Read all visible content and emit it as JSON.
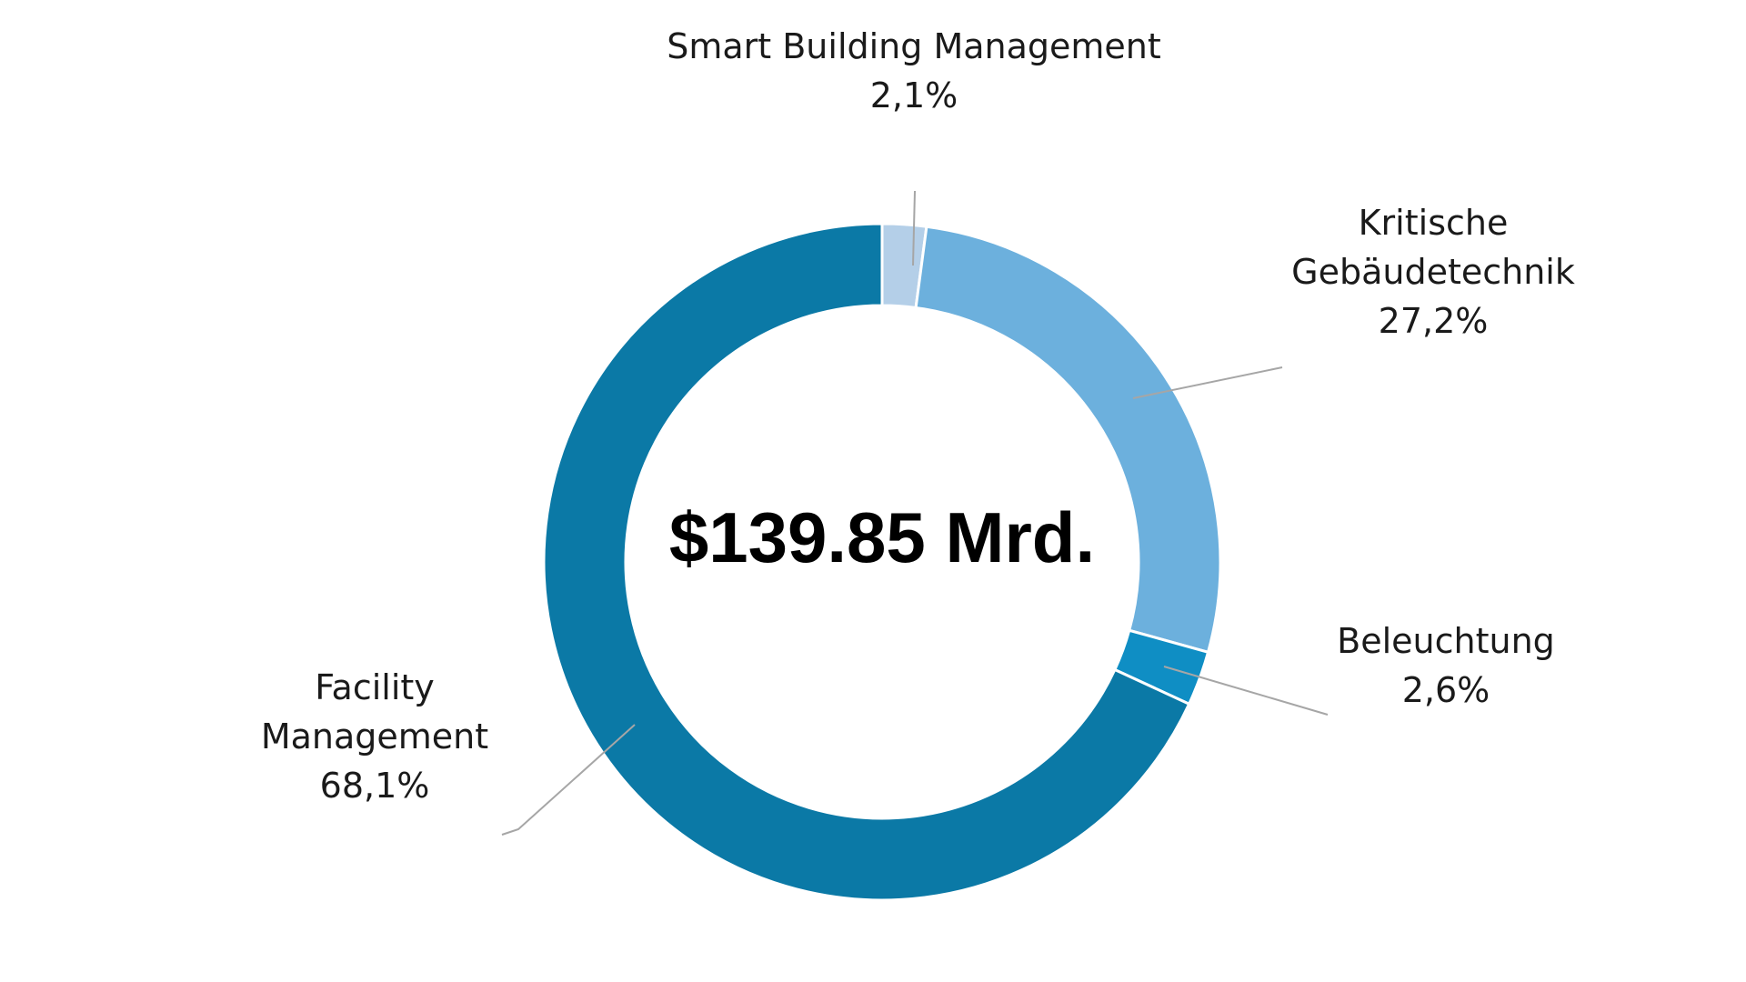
{
  "chart_data": {
    "type": "pie",
    "donut": true,
    "center_label": "$139.85 Mrd.",
    "slices": [
      {
        "label_lines": [
          "Smart Building Management"
        ],
        "percent_label": "2,1%",
        "value": 2.1,
        "color": "#b4cfe8"
      },
      {
        "label_lines": [
          "Kritische",
          "Gebäudetechnik"
        ],
        "percent_label": "27,2%",
        "value": 27.2,
        "color": "#6cb0dd"
      },
      {
        "label_lines": [
          "Beleuchtung"
        ],
        "percent_label": "2,6%",
        "value": 2.6,
        "color": "#0f8ec4"
      },
      {
        "label_lines": [
          "Facility",
          "Management"
        ],
        "percent_label": "68,1%",
        "value": 68.1,
        "color": "#0b79a6"
      }
    ]
  }
}
